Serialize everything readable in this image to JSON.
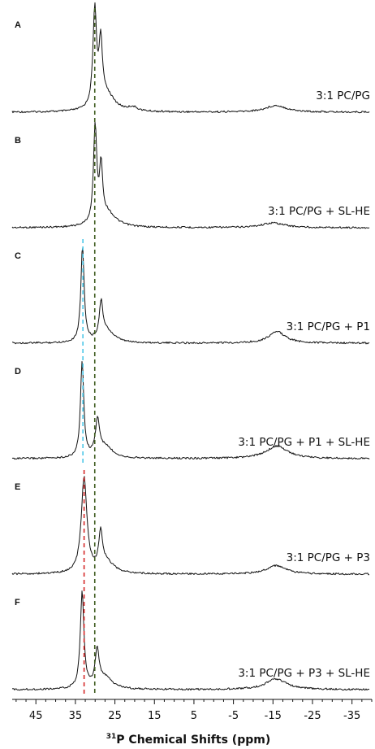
{
  "chart_data": {
    "type": "line",
    "title": "",
    "xlabel_sup": "31",
    "xlabel": "P Chemical Shifts (ppm)",
    "ylabel": "",
    "x_axis": {
      "reversed": true,
      "xlim": [
        51,
        -40
      ],
      "ticks": [
        45,
        35,
        25,
        15,
        5,
        -5,
        -15,
        -25,
        -35
      ],
      "tick_labels": [
        "45",
        "35",
        "25",
        "15",
        "5",
        "-5",
        "-15",
        "-25",
        "-35"
      ]
    },
    "grid": false,
    "reference_lines": [
      {
        "color": "#3d5a1e",
        "ppm": 30.1,
        "panels": [
          "A",
          "B",
          "C",
          "D",
          "E",
          "F"
        ]
      },
      {
        "color": "#4ec8e8",
        "ppm": 33.1,
        "panels": [
          "C",
          "D"
        ]
      },
      {
        "color": "#d62828",
        "ppm": 32.8,
        "panels": [
          "E",
          "F"
        ]
      }
    ],
    "panels": [
      {
        "letter": "A",
        "label": "3:1 PC/PG",
        "peaks": [
          {
            "ppm": 30.1,
            "height": 1.0,
            "width": 0.55
          },
          {
            "ppm": 28.6,
            "height": 0.62,
            "width": 0.5
          },
          {
            "ppm": 27.2,
            "height": 0.18,
            "width": 2.4
          },
          {
            "ppm": 20.5,
            "height": 0.04,
            "width": 1.4
          },
          {
            "ppm": -15.8,
            "height": 0.07,
            "width": 3.2
          }
        ]
      },
      {
        "letter": "B",
        "label": "3:1 PC/PG + SL-HE",
        "peaks": [
          {
            "ppm": 30.0,
            "height": 1.0,
            "width": 0.5
          },
          {
            "ppm": 28.5,
            "height": 0.55,
            "width": 0.45
          },
          {
            "ppm": 27.0,
            "height": 0.15,
            "width": 2.6
          },
          {
            "ppm": -15.0,
            "height": 0.05,
            "width": 3.5
          }
        ]
      },
      {
        "letter": "C",
        "label": "3:1 PC/PG + P1",
        "peaks": [
          {
            "ppm": 33.2,
            "height": 1.0,
            "width": 0.5
          },
          {
            "ppm": 28.5,
            "height": 0.37,
            "width": 0.55
          },
          {
            "ppm": 27.0,
            "height": 0.12,
            "width": 2.2
          },
          {
            "ppm": -16.0,
            "height": 0.12,
            "width": 2.6
          }
        ]
      },
      {
        "letter": "D",
        "label": "3:1 PC/PG + P1 + SL-HE",
        "peaks": [
          {
            "ppm": 33.3,
            "height": 1.0,
            "width": 0.5
          },
          {
            "ppm": 29.4,
            "height": 0.36,
            "width": 0.6
          },
          {
            "ppm": 27.5,
            "height": 0.12,
            "width": 2.3
          },
          {
            "ppm": -16.0,
            "height": 0.13,
            "width": 3.4
          }
        ]
      },
      {
        "letter": "E",
        "label": "3:1 PC/PG + P3",
        "peaks": [
          {
            "ppm": 32.8,
            "height": 1.0,
            "width": 0.85
          },
          {
            "ppm": 28.6,
            "height": 0.37,
            "width": 0.55
          },
          {
            "ppm": 27.2,
            "height": 0.12,
            "width": 2.3
          },
          {
            "ppm": -15.8,
            "height": 0.09,
            "width": 2.9
          }
        ]
      },
      {
        "letter": "F",
        "label": "3:1 PC/PG + P3 + SL-HE",
        "peaks": [
          {
            "ppm": 33.3,
            "height": 1.0,
            "width": 0.55
          },
          {
            "ppm": 29.5,
            "height": 0.37,
            "width": 0.6
          },
          {
            "ppm": 27.5,
            "height": 0.12,
            "width": 2.2
          },
          {
            "ppm": -15.8,
            "height": 0.11,
            "width": 3.2
          }
        ]
      }
    ]
  }
}
